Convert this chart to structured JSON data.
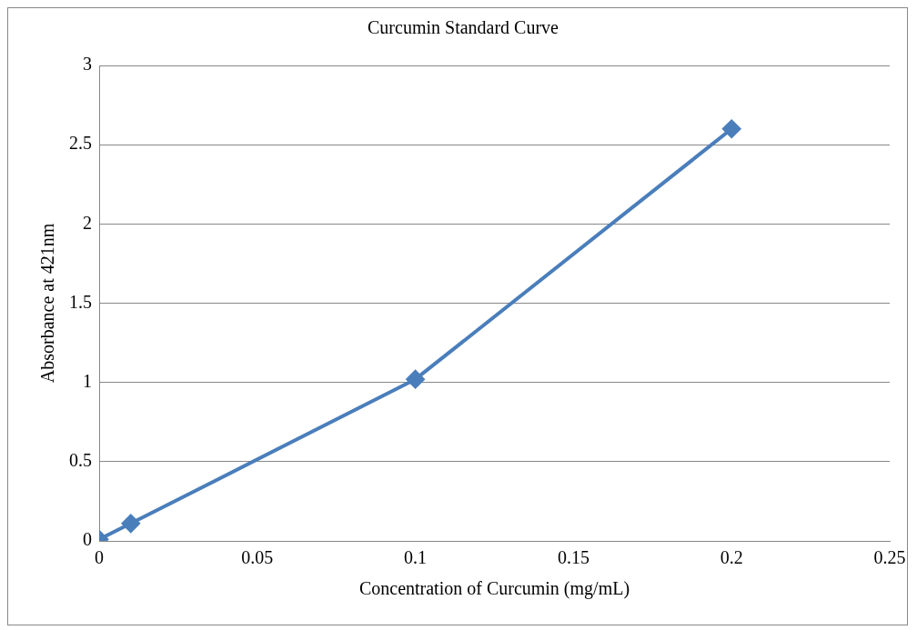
{
  "chart_data": {
    "type": "line",
    "title": "Curcumin Standard Curve",
    "xlabel": "Concentration of Curcumin (mg/mL)",
    "ylabel": "Absorbance at 421nm",
    "x": [
      0,
      0.01,
      0.1,
      0.2
    ],
    "series": [
      {
        "color": "#4a7ebb",
        "values": [
          0.01,
          0.11,
          1.02,
          2.6
        ]
      }
    ],
    "xlim": [
      0,
      0.25
    ],
    "xticks": [
      0,
      0.05,
      0.1,
      0.15,
      0.2,
      0.25
    ],
    "ylim": [
      0,
      3
    ],
    "yticks": [
      0,
      0.5,
      1,
      1.5,
      2,
      2.5,
      3
    ],
    "grid": "y",
    "legend": false,
    "marker": "diamond",
    "line_style": "solid"
  }
}
